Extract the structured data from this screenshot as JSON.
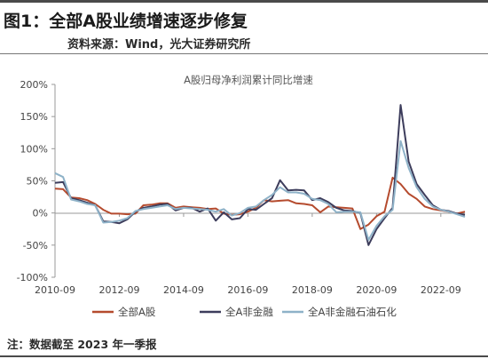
{
  "header": {
    "figure_title": "图1：全部A股业绩增速逐步修复",
    "source": "资料来源：Wind，光大证券研究所"
  },
  "footer": {
    "note": "注：数据截至 2023 年一季报"
  },
  "chart_data": {
    "type": "line",
    "title": "A股归母净利润累计同比增速",
    "xlabel": "",
    "ylabel": "",
    "ylim": [
      -100,
      200
    ],
    "y_ticks": [
      "-100%",
      "-50%",
      "0%",
      "50%",
      "100%",
      "150%",
      "200%"
    ],
    "y_tick_values": [
      -100,
      -50,
      0,
      50,
      100,
      150,
      200
    ],
    "x_ticks": [
      "2010-09",
      "2012-09",
      "2014-09",
      "2016-09",
      "2018-09",
      "2020-09",
      "2022-09"
    ],
    "x_start": "2010-09",
    "x_end": "2023-03",
    "x_step": "quarter",
    "grid": false,
    "legend_position": "bottom",
    "series": [
      {
        "name": "全部A股",
        "color": "#b54b2e",
        "values": [
          38,
          37,
          24,
          23,
          20,
          14,
          5,
          -1,
          -1,
          -2,
          -1,
          12,
          13,
          15,
          15,
          8,
          10,
          9,
          8,
          6,
          7,
          -1,
          -3,
          -2,
          2,
          8,
          20,
          18,
          19,
          20,
          15,
          14,
          12,
          1,
          10,
          9,
          8,
          7,
          -25,
          -18,
          -5,
          2,
          55,
          45,
          30,
          22,
          10,
          6,
          4,
          2,
          -1,
          2
        ]
      },
      {
        "name": "全A非金融",
        "color": "#3d3d5c",
        "values": [
          47,
          48,
          23,
          20,
          16,
          12,
          -13,
          -14,
          -16,
          -10,
          2,
          8,
          10,
          13,
          14,
          4,
          8,
          8,
          2,
          7,
          -12,
          1,
          -10,
          -8,
          6,
          5,
          14,
          23,
          51,
          35,
          36,
          35,
          20,
          23,
          17,
          8,
          4,
          3,
          0,
          -50,
          -25,
          -8,
          8,
          168,
          80,
          45,
          28,
          12,
          5,
          3,
          -1,
          -3
        ]
      },
      {
        "name": "全A非金融石油石化",
        "color": "#8eb2c8",
        "values": [
          62,
          56,
          21,
          18,
          14,
          12,
          -15,
          -14,
          -12,
          -8,
          3,
          6,
          8,
          10,
          12,
          6,
          8,
          7,
          6,
          5,
          2,
          6,
          -4,
          0,
          8,
          10,
          20,
          28,
          40,
          32,
          32,
          30,
          22,
          20,
          14,
          1,
          2,
          2,
          1,
          -42,
          -20,
          -5,
          5,
          112,
          70,
          40,
          22,
          10,
          5,
          2,
          -2,
          -6
        ]
      }
    ]
  }
}
